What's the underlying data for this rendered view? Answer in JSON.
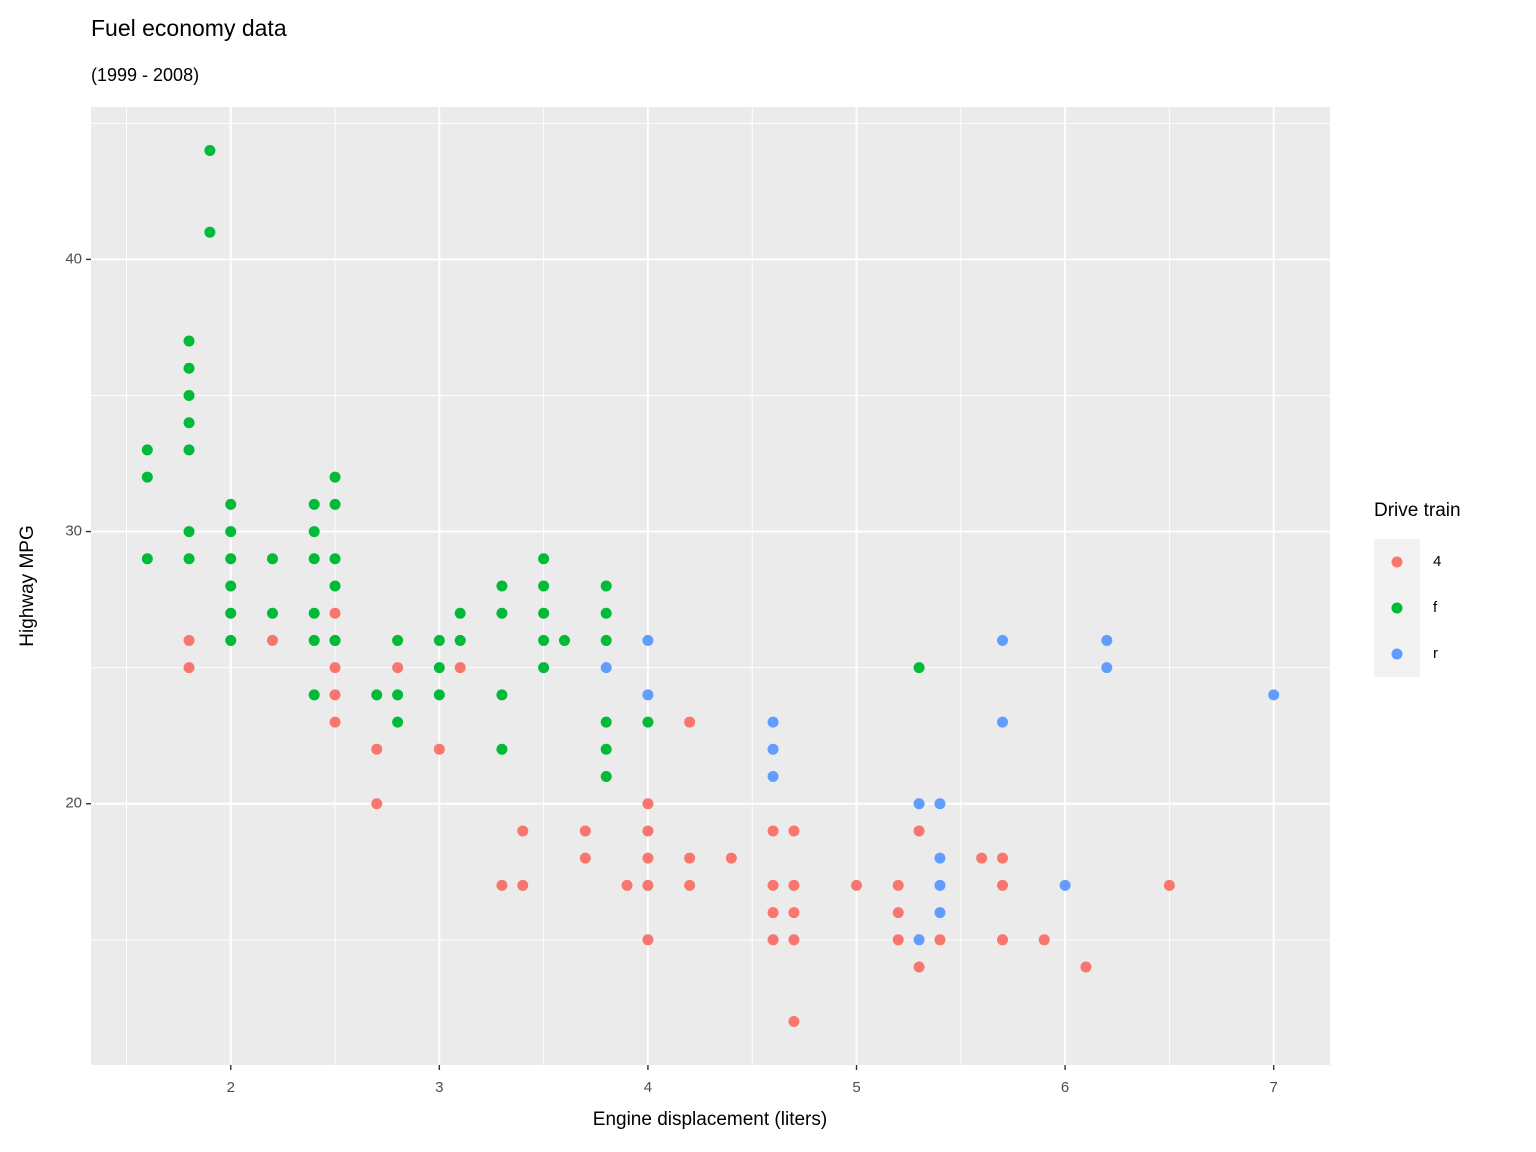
{
  "chart_data": {
    "type": "scatter",
    "title": "Fuel economy data",
    "subtitle": "(1999 - 2008)",
    "x_label": "Engine displacement (liters)",
    "y_label": "Highway MPG",
    "legend_title": "Drive train",
    "legend_position": "right",
    "grid": true,
    "xlim": [
      1.33,
      7.27
    ],
    "ylim": [
      10.4,
      45.6
    ],
    "xticks": [
      2,
      3,
      4,
      5,
      6,
      7
    ],
    "yticks": [
      20,
      30,
      40
    ],
    "series": [
      {
        "name": "4",
        "color": "#F8766D",
        "x": [
          1.8,
          1.8,
          2.2,
          2.5,
          2.5,
          2.5,
          2.5,
          2.5,
          2.7,
          2.7,
          2.8,
          3.0,
          3.1,
          3.3,
          3.4,
          3.4,
          3.7,
          3.7,
          3.9,
          4.0,
          4.0,
          4.0,
          4.0,
          4.0,
          4.2,
          4.2,
          4.2,
          4.4,
          4.6,
          4.6,
          4.6,
          4.6,
          4.7,
          4.7,
          4.7,
          4.7,
          4.7,
          5.0,
          5.2,
          5.2,
          5.2,
          5.3,
          5.3,
          5.4,
          5.6,
          5.7,
          5.7,
          5.7,
          5.9,
          6.1,
          6.5
        ],
        "y": [
          26,
          25,
          26,
          27,
          26,
          25,
          24,
          23,
          22,
          20,
          25,
          22,
          25,
          17,
          19,
          17,
          19,
          18,
          17,
          20,
          19,
          18,
          17,
          15,
          23,
          18,
          17,
          18,
          19,
          17,
          16,
          15,
          19,
          17,
          16,
          15,
          12,
          17,
          17,
          16,
          15,
          19,
          14,
          15,
          18,
          18,
          17,
          15,
          15,
          14,
          17
        ]
      },
      {
        "name": "f",
        "color": "#00BA38",
        "x": [
          1.6,
          1.6,
          1.6,
          1.8,
          1.8,
          1.8,
          1.8,
          1.8,
          1.8,
          1.8,
          1.9,
          1.9,
          2.0,
          2.0,
          2.0,
          2.0,
          2.0,
          2.0,
          2.2,
          2.2,
          2.4,
          2.4,
          2.4,
          2.4,
          2.4,
          2.4,
          2.5,
          2.5,
          2.5,
          2.5,
          2.5,
          2.7,
          2.8,
          2.8,
          2.8,
          3.0,
          3.0,
          3.0,
          3.1,
          3.1,
          3.3,
          3.3,
          3.3,
          3.3,
          3.5,
          3.5,
          3.5,
          3.5,
          3.5,
          3.6,
          3.8,
          3.8,
          3.8,
          3.8,
          3.8,
          3.8,
          4.0,
          5.3
        ],
        "y": [
          33,
          32,
          29,
          37,
          36,
          35,
          34,
          33,
          30,
          29,
          44,
          41,
          31,
          30,
          29,
          28,
          27,
          26,
          29,
          27,
          31,
          30,
          29,
          27,
          26,
          24,
          32,
          31,
          29,
          28,
          26,
          24,
          26,
          24,
          23,
          26,
          25,
          24,
          27,
          26,
          28,
          27,
          24,
          22,
          29,
          28,
          27,
          26,
          25,
          26,
          28,
          27,
          26,
          23,
          22,
          21,
          23,
          25
        ]
      },
      {
        "name": "r",
        "color": "#619CFF",
        "x": [
          3.8,
          4.0,
          4.0,
          4.6,
          4.6,
          4.6,
          5.3,
          5.3,
          5.4,
          5.4,
          5.4,
          5.4,
          5.7,
          5.7,
          6.0,
          6.2,
          6.2,
          7.0
        ],
        "y": [
          25,
          26,
          24,
          23,
          22,
          21,
          20,
          15,
          20,
          18,
          17,
          16,
          26,
          23,
          17,
          26,
          25,
          24
        ]
      }
    ]
  }
}
